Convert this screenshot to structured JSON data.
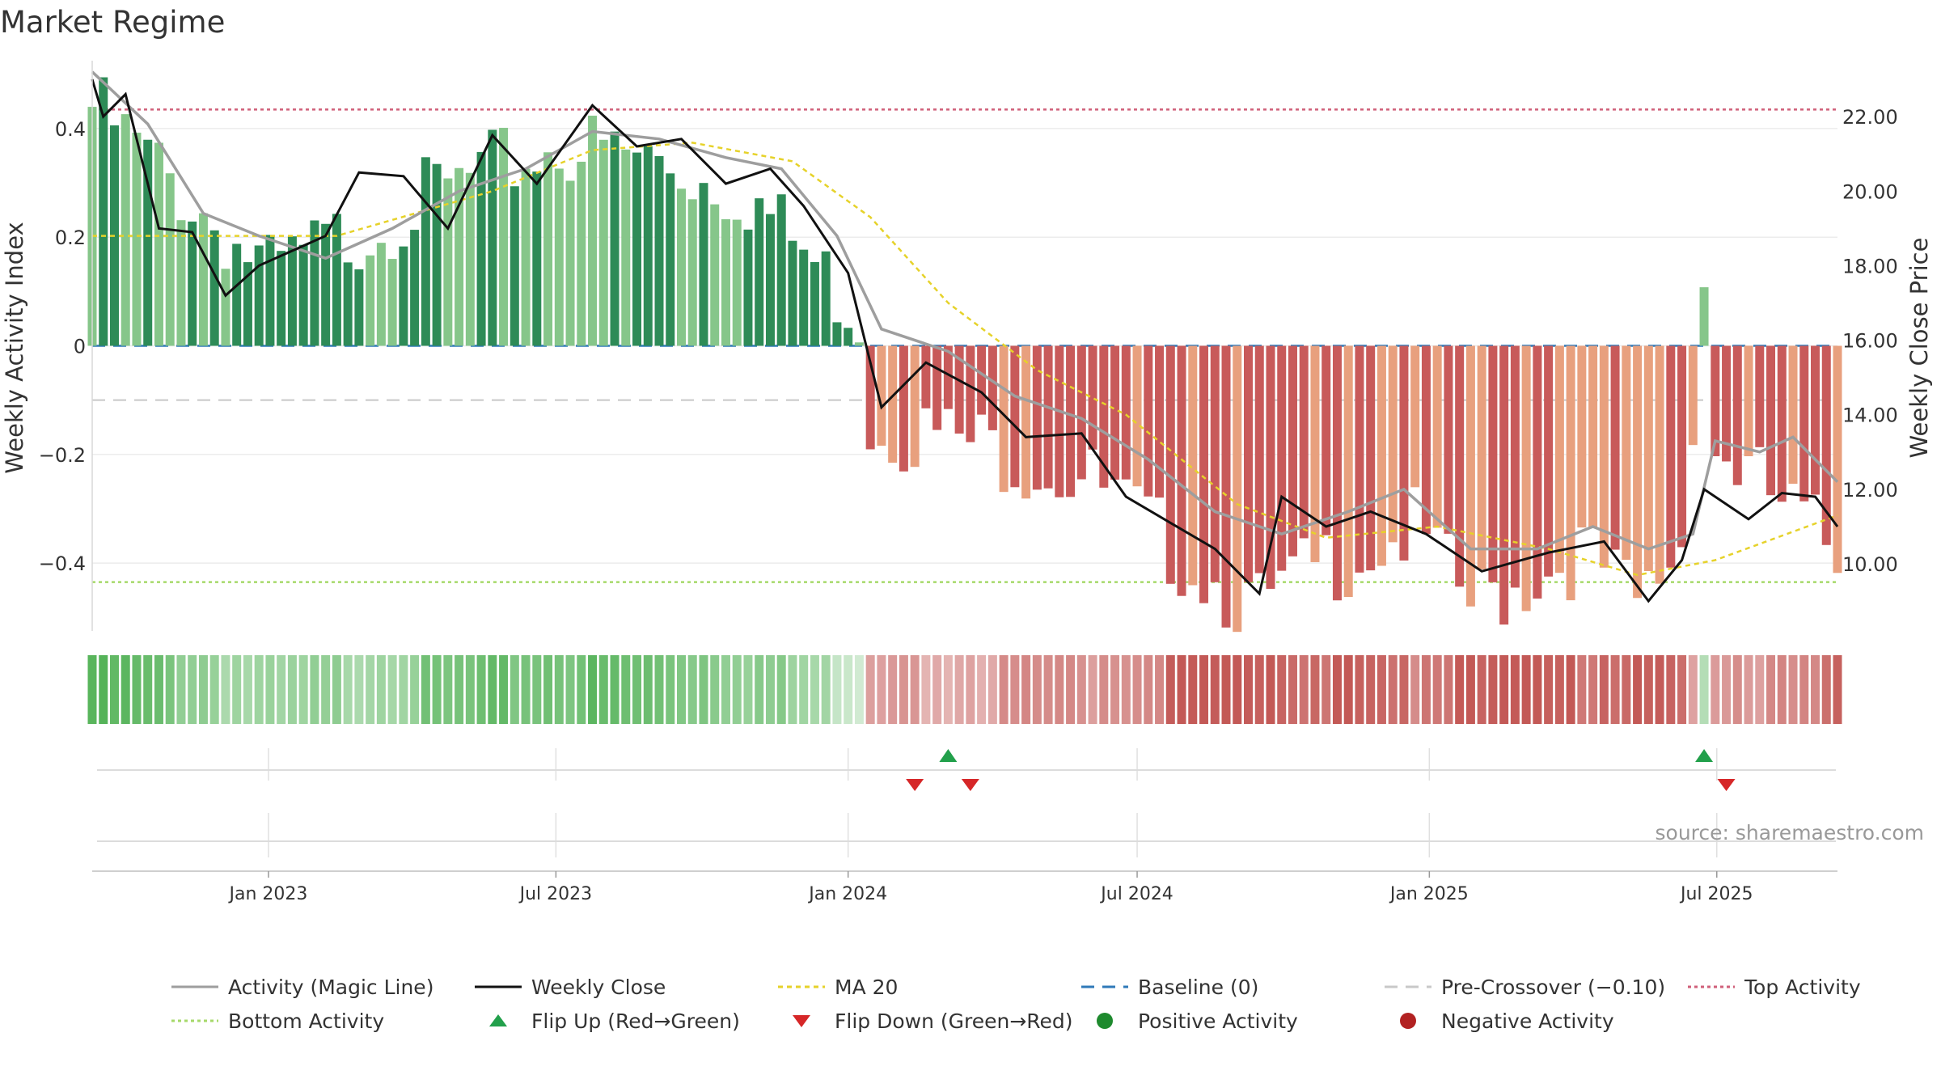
{
  "title": "Market Regime",
  "source": "source: sharemaestro.com",
  "legend": [
    {
      "label": "Activity (Magic Line)",
      "kind": "line",
      "color": "#9e9e9e",
      "dash": ""
    },
    {
      "label": "Weekly Close",
      "kind": "line",
      "color": "#111111",
      "dash": ""
    },
    {
      "label": "MA 20",
      "kind": "line",
      "color": "#e6d22a",
      "dash": "6,5"
    },
    {
      "label": "Baseline (0)",
      "kind": "line",
      "color": "#2f79b8",
      "dash": "16,10"
    },
    {
      "label": "Pre-Crossover (−0.10)",
      "kind": "line",
      "color": "#c8c8c8",
      "dash": "16,10"
    },
    {
      "label": "Top Activity",
      "kind": "line",
      "color": "#d0607a",
      "dash": "4,4"
    },
    {
      "label": "Bottom Activity",
      "kind": "line",
      "color": "#a6d96a",
      "dash": "4,4"
    },
    {
      "label": "Flip Up (Red→Green)",
      "kind": "tri-up",
      "color": "#22a04b"
    },
    {
      "label": "Flip Down (Green→Red)",
      "kind": "tri-down",
      "color": "#d62728"
    },
    {
      "label": "Positive Activity",
      "kind": "dot",
      "color": "#1e8a2e"
    },
    {
      "label": "Negative Activity",
      "kind": "dot",
      "color": "#b22222"
    }
  ],
  "colors": {
    "pos_dark": "#2e8b57",
    "pos_light": "#86c68a",
    "neg_dark": "#c85a5a",
    "neg_light": "#e8a07e",
    "strip_green": "#4caf50",
    "strip_red": "#c0504d"
  },
  "chart_data": {
    "type": "bar",
    "title": "Market Regime",
    "ylabel": "Weekly Activity Index",
    "y2label": "Weekly Close Price",
    "ylim": [
      -0.525,
      0.525
    ],
    "y2lim": [
      8.2,
      23.5
    ],
    "yticks": [
      -0.4,
      -0.2,
      0,
      0.2,
      0.4
    ],
    "ytick_labels": [
      "−0.4",
      "−0.2",
      "0",
      "0.2",
      "0.4"
    ],
    "y2ticks": [
      10,
      12,
      14,
      16,
      18,
      20,
      22
    ],
    "y2tick_labels": [
      "10.00",
      "12.00",
      "14.00",
      "16.00",
      "18.00",
      "20.00",
      "22.00"
    ],
    "x_start": "2022-09-12",
    "x_end": "2025-09-15",
    "xticks": [
      "2023-01-01",
      "2023-07-01",
      "2024-01-01",
      "2024-07-01",
      "2025-01-01",
      "2025-07-01"
    ],
    "xtick_labels": [
      "Jan 2023",
      "Jul 2023",
      "Jan 2024",
      "Jul 2024",
      "Jan 2025",
      "Jul 2025"
    ],
    "ref_lines": {
      "top_activity": 0.435,
      "bottom_activity": -0.435,
      "pre_crossover": -0.1,
      "baseline": 0
    },
    "grid": true,
    "legend_position": "bottom",
    "activity_series": [
      {
        "x": "2022-09-12",
        "v": 0.48
      },
      {
        "x": "2023-01-02",
        "v": 0.17
      },
      {
        "x": "2023-04-03",
        "v": 0.3
      },
      {
        "x": "2023-07-03",
        "v": 0.41
      },
      {
        "x": "2023-09-04",
        "v": 0.38
      },
      {
        "x": "2023-10-30",
        "v": 0.32
      },
      {
        "x": "2024-01-08",
        "v": 0.1
      },
      {
        "x": "2024-01-15",
        "v": -0.1
      },
      {
        "x": "2024-04-01",
        "v": -0.15
      },
      {
        "x": "2024-05-27",
        "v": -0.2
      },
      {
        "x": "2024-07-22",
        "v": -0.33
      },
      {
        "x": "2024-09-16",
        "v": -0.45
      },
      {
        "x": "2024-10-28",
        "v": -0.36
      },
      {
        "x": "2024-12-23",
        "v": -0.3
      },
      {
        "x": "2025-01-27",
        "v": -0.44
      },
      {
        "x": "2025-04-07",
        "v": -0.34
      },
      {
        "x": "2025-05-12",
        "v": -0.44
      },
      {
        "x": "2025-06-09",
        "v": -0.32
      },
      {
        "x": "2025-06-23",
        "v": 0.17
      },
      {
        "x": "2025-06-30",
        "v": -0.15
      },
      {
        "x": "2025-09-15",
        "v": -0.34
      }
    ],
    "magic_line": [
      {
        "x": "2022-09-12",
        "v": 23.2
      },
      {
        "x": "2022-10-17",
        "v": 21.8
      },
      {
        "x": "2022-11-21",
        "v": 19.4
      },
      {
        "x": "2022-12-26",
        "v": 18.8
      },
      {
        "x": "2023-02-06",
        "v": 18.2
      },
      {
        "x": "2023-03-20",
        "v": 19.0
      },
      {
        "x": "2023-05-01",
        "v": 20.0
      },
      {
        "x": "2023-06-12",
        "v": 20.6
      },
      {
        "x": "2023-07-24",
        "v": 21.6
      },
      {
        "x": "2023-09-04",
        "v": 21.4
      },
      {
        "x": "2023-10-16",
        "v": 20.9
      },
      {
        "x": "2023-11-20",
        "v": 20.6
      },
      {
        "x": "2023-12-25",
        "v": 18.8
      },
      {
        "x": "2024-01-22",
        "v": 16.3
      },
      {
        "x": "2024-03-04",
        "v": 15.7
      },
      {
        "x": "2024-04-15",
        "v": 14.5
      },
      {
        "x": "2024-05-27",
        "v": 13.9
      },
      {
        "x": "2024-07-08",
        "v": 12.8
      },
      {
        "x": "2024-08-19",
        "v": 11.4
      },
      {
        "x": "2024-09-30",
        "v": 10.8
      },
      {
        "x": "2024-11-11",
        "v": 11.4
      },
      {
        "x": "2024-12-16",
        "v": 12.0
      },
      {
        "x": "2025-01-27",
        "v": 10.4
      },
      {
        "x": "2025-03-10",
        "v": 10.4
      },
      {
        "x": "2025-04-14",
        "v": 11.0
      },
      {
        "x": "2025-05-19",
        "v": 10.4
      },
      {
        "x": "2025-06-16",
        "v": 10.8
      },
      {
        "x": "2025-06-30",
        "v": 13.3
      },
      {
        "x": "2025-07-28",
        "v": 13.0
      },
      {
        "x": "2025-08-18",
        "v": 13.4
      },
      {
        "x": "2025-09-15",
        "v": 12.2
      }
    ],
    "weekly_close": [
      {
        "x": "2022-09-12",
        "v": 23.0
      },
      {
        "x": "2022-09-19",
        "v": 22.0
      },
      {
        "x": "2022-10-03",
        "v": 22.6
      },
      {
        "x": "2022-10-24",
        "v": 19.0
      },
      {
        "x": "2022-11-14",
        "v": 18.9
      },
      {
        "x": "2022-12-05",
        "v": 17.2
      },
      {
        "x": "2022-12-26",
        "v": 18.0
      },
      {
        "x": "2023-02-06",
        "v": 18.8
      },
      {
        "x": "2023-02-27",
        "v": 20.5
      },
      {
        "x": "2023-03-27",
        "v": 20.4
      },
      {
        "x": "2023-04-24",
        "v": 19.0
      },
      {
        "x": "2023-05-22",
        "v": 21.5
      },
      {
        "x": "2023-06-19",
        "v": 20.2
      },
      {
        "x": "2023-07-24",
        "v": 22.3
      },
      {
        "x": "2023-08-21",
        "v": 21.2
      },
      {
        "x": "2023-09-18",
        "v": 21.4
      },
      {
        "x": "2023-10-16",
        "v": 20.2
      },
      {
        "x": "2023-11-13",
        "v": 20.6
      },
      {
        "x": "2023-12-04",
        "v": 19.6
      },
      {
        "x": "2024-01-01",
        "v": 17.8
      },
      {
        "x": "2024-01-22",
        "v": 14.2
      },
      {
        "x": "2024-02-19",
        "v": 15.4
      },
      {
        "x": "2024-03-25",
        "v": 14.6
      },
      {
        "x": "2024-04-22",
        "v": 13.4
      },
      {
        "x": "2024-05-27",
        "v": 13.5
      },
      {
        "x": "2024-06-24",
        "v": 11.8
      },
      {
        "x": "2024-07-22",
        "v": 11.1
      },
      {
        "x": "2024-08-19",
        "v": 10.4
      },
      {
        "x": "2024-09-16",
        "v": 9.2
      },
      {
        "x": "2024-09-30",
        "v": 11.8
      },
      {
        "x": "2024-10-28",
        "v": 11.0
      },
      {
        "x": "2024-11-25",
        "v": 11.4
      },
      {
        "x": "2024-12-30",
        "v": 10.8
      },
      {
        "x": "2025-02-03",
        "v": 9.8
      },
      {
        "x": "2025-03-17",
        "v": 10.3
      },
      {
        "x": "2025-04-21",
        "v": 10.6
      },
      {
        "x": "2025-05-19",
        "v": 9.0
      },
      {
        "x": "2025-06-09",
        "v": 10.1
      },
      {
        "x": "2025-06-23",
        "v": 12.0
      },
      {
        "x": "2025-07-21",
        "v": 11.2
      },
      {
        "x": "2025-08-11",
        "v": 11.9
      },
      {
        "x": "2025-09-01",
        "v": 11.8
      },
      {
        "x": "2025-09-15",
        "v": 11.0
      }
    ],
    "ma20": [
      {
        "x": "2022-09-12",
        "v": 18.8
      },
      {
        "x": "2023-02-13",
        "v": 18.8
      },
      {
        "x": "2023-05-22",
        "v": 20.0
      },
      {
        "x": "2023-07-24",
        "v": 21.1
      },
      {
        "x": "2023-09-25",
        "v": 21.3
      },
      {
        "x": "2023-11-27",
        "v": 20.8
      },
      {
        "x": "2024-01-15",
        "v": 19.3
      },
      {
        "x": "2024-03-04",
        "v": 17.0
      },
      {
        "x": "2024-04-29",
        "v": 15.2
      },
      {
        "x": "2024-06-24",
        "v": 14.0
      },
      {
        "x": "2024-09-02",
        "v": 11.6
      },
      {
        "x": "2024-10-28",
        "v": 10.7
      },
      {
        "x": "2025-01-06",
        "v": 11.0
      },
      {
        "x": "2025-03-17",
        "v": 10.4
      },
      {
        "x": "2025-05-12",
        "v": 9.7
      },
      {
        "x": "2025-06-30",
        "v": 10.1
      },
      {
        "x": "2025-09-15",
        "v": 11.3
      }
    ],
    "flip_up": [
      "2024-03-04",
      "2025-06-23"
    ],
    "flip_down": [
      "2024-02-12",
      "2024-03-18",
      "2025-07-07"
    ]
  }
}
